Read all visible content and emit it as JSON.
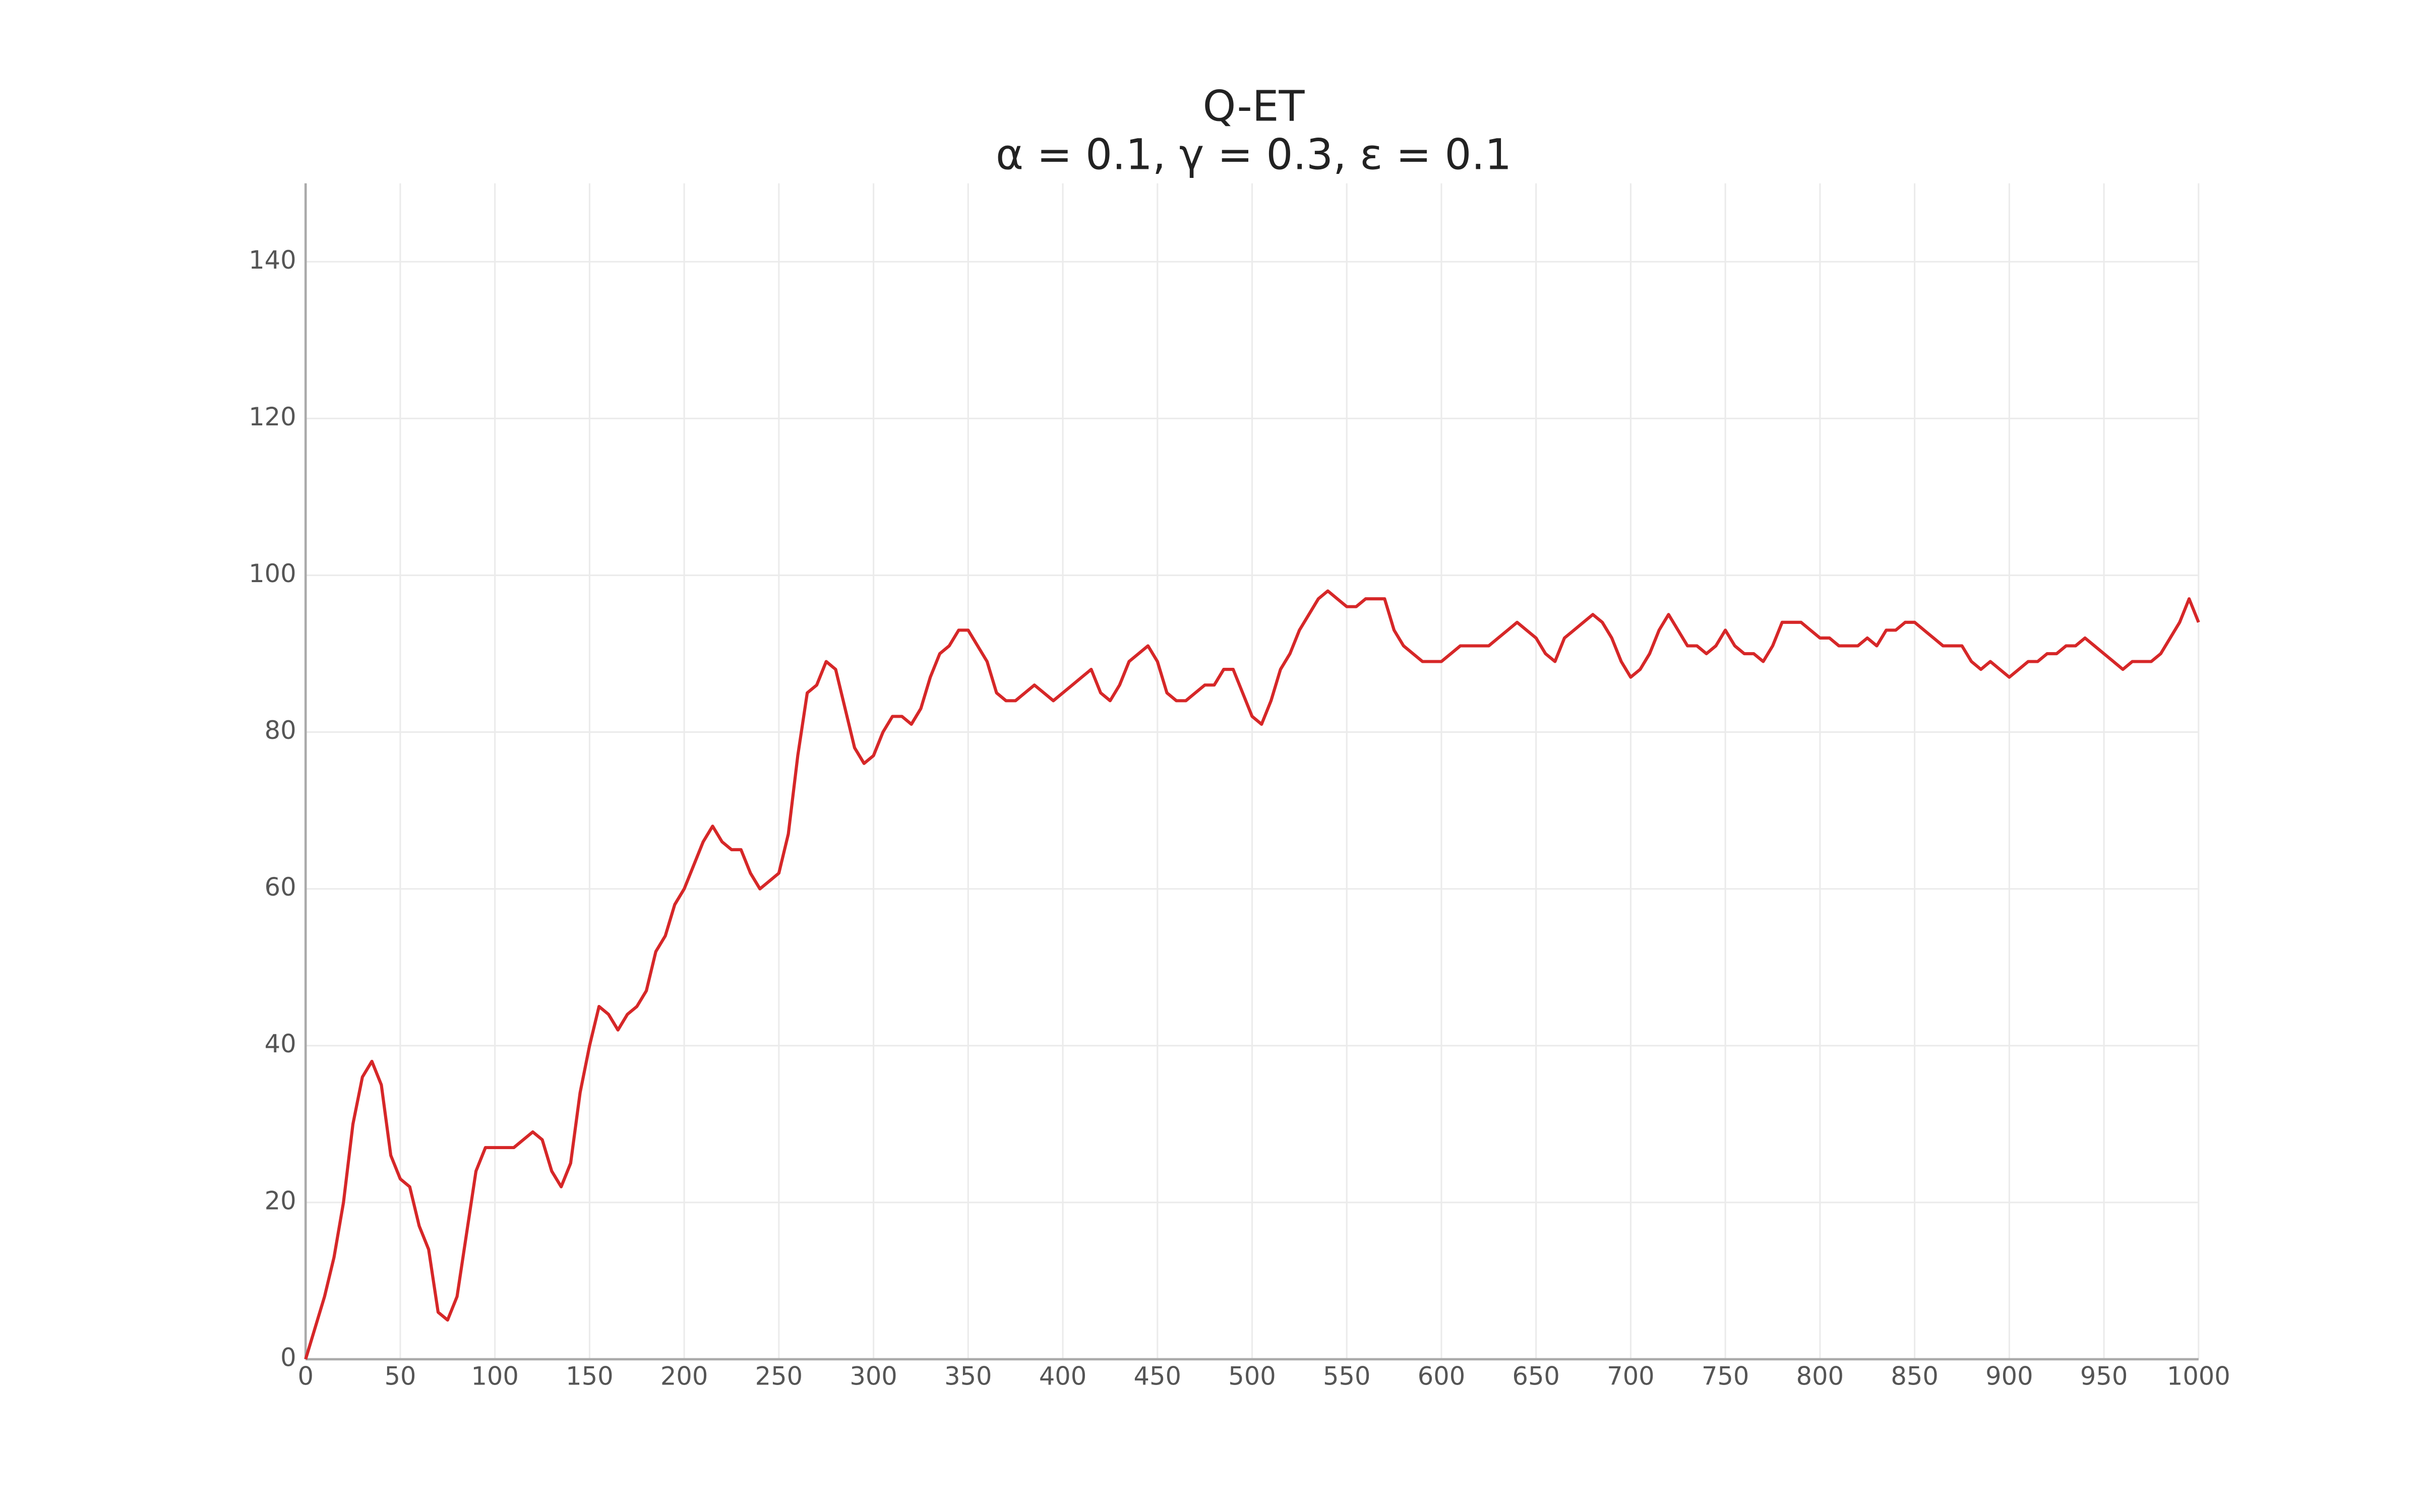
{
  "chart_data": {
    "type": "line",
    "title": "Q-ET",
    "subtitle": "α = 0.1, γ = 0.3, ε = 0.1",
    "x": [
      0,
      5,
      10,
      15,
      20,
      25,
      30,
      35,
      40,
      45,
      50,
      55,
      60,
      65,
      70,
      75,
      80,
      85,
      90,
      95,
      100,
      105,
      110,
      115,
      120,
      125,
      130,
      135,
      140,
      145,
      150,
      155,
      160,
      165,
      170,
      175,
      180,
      185,
      190,
      195,
      200,
      205,
      210,
      215,
      220,
      225,
      230,
      235,
      240,
      245,
      250,
      255,
      260,
      265,
      270,
      275,
      280,
      285,
      290,
      295,
      300,
      305,
      310,
      315,
      320,
      325,
      330,
      335,
      340,
      345,
      350,
      355,
      360,
      365,
      370,
      375,
      380,
      385,
      390,
      395,
      400,
      405,
      410,
      415,
      420,
      425,
      430,
      435,
      440,
      445,
      450,
      455,
      460,
      465,
      470,
      475,
      480,
      485,
      490,
      495,
      500,
      505,
      510,
      515,
      520,
      525,
      530,
      535,
      540,
      545,
      550,
      555,
      560,
      565,
      570,
      575,
      580,
      585,
      590,
      595,
      600,
      605,
      610,
      615,
      620,
      625,
      630,
      635,
      640,
      645,
      650,
      655,
      660,
      665,
      670,
      675,
      680,
      685,
      690,
      695,
      700,
      705,
      710,
      715,
      720,
      725,
      730,
      735,
      740,
      745,
      750,
      755,
      760,
      765,
      770,
      775,
      780,
      785,
      790,
      795,
      800,
      805,
      810,
      815,
      820,
      825,
      830,
      835,
      840,
      845,
      850,
      855,
      860,
      865,
      870,
      875,
      880,
      885,
      890,
      895,
      900,
      905,
      910,
      915,
      920,
      925,
      930,
      935,
      940,
      945,
      950,
      955,
      960,
      965,
      970,
      975,
      980,
      985,
      990,
      995,
      1000
    ],
    "series": [
      {
        "color": "#d62728",
        "values": [
          0,
          4,
          8,
          13,
          20,
          30,
          36,
          38,
          35,
          26,
          23,
          22,
          17,
          14,
          6,
          5,
          8,
          16,
          24,
          27,
          27,
          27,
          27,
          28,
          29,
          28,
          24,
          22,
          25,
          34,
          40,
          45,
          44,
          42,
          44,
          45,
          47,
          52,
          54,
          58,
          60,
          63,
          66,
          68,
          66,
          65,
          65,
          62,
          60,
          61,
          62,
          67,
          77,
          85,
          86,
          89,
          88,
          83,
          78,
          76,
          77,
          80,
          82,
          82,
          81,
          83,
          87,
          90,
          91,
          93,
          93,
          91,
          89,
          85,
          84,
          84,
          85,
          86,
          85,
          84,
          85,
          86,
          87,
          88,
          85,
          84,
          86,
          89,
          90,
          91,
          89,
          85,
          84,
          84,
          85,
          86,
          86,
          88,
          88,
          85,
          82,
          81,
          84,
          88,
          90,
          93,
          95,
          97,
          98,
          97,
          96,
          96,
          97,
          97,
          97,
          93,
          91,
          90,
          89,
          89,
          89,
          90,
          91,
          91,
          91,
          91,
          92,
          93,
          94,
          93,
          92,
          90,
          89,
          92,
          93,
          94,
          95,
          94,
          92,
          89,
          87,
          88,
          90,
          93,
          95,
          93,
          91,
          91,
          90,
          91,
          93,
          91,
          90,
          90,
          89,
          91,
          94,
          94,
          94,
          93,
          92,
          92,
          91,
          91,
          91,
          92,
          91,
          93,
          93,
          94,
          94,
          93,
          92,
          91,
          91,
          91,
          89,
          88,
          89,
          88,
          87,
          88,
          89,
          89,
          90,
          90,
          91,
          91,
          92,
          91,
          90,
          89,
          88,
          89,
          89,
          89,
          90,
          92,
          94,
          97,
          94
        ]
      }
    ],
    "xlim": [
      0,
      1000
    ],
    "ylim": [
      0,
      150
    ],
    "xticks": [
      0,
      50,
      100,
      150,
      200,
      250,
      300,
      350,
      400,
      450,
      500,
      550,
      600,
      650,
      700,
      750,
      800,
      850,
      900,
      950,
      1000
    ],
    "yticks": [
      0,
      20,
      40,
      60,
      80,
      100,
      120,
      140
    ],
    "grid": true
  }
}
